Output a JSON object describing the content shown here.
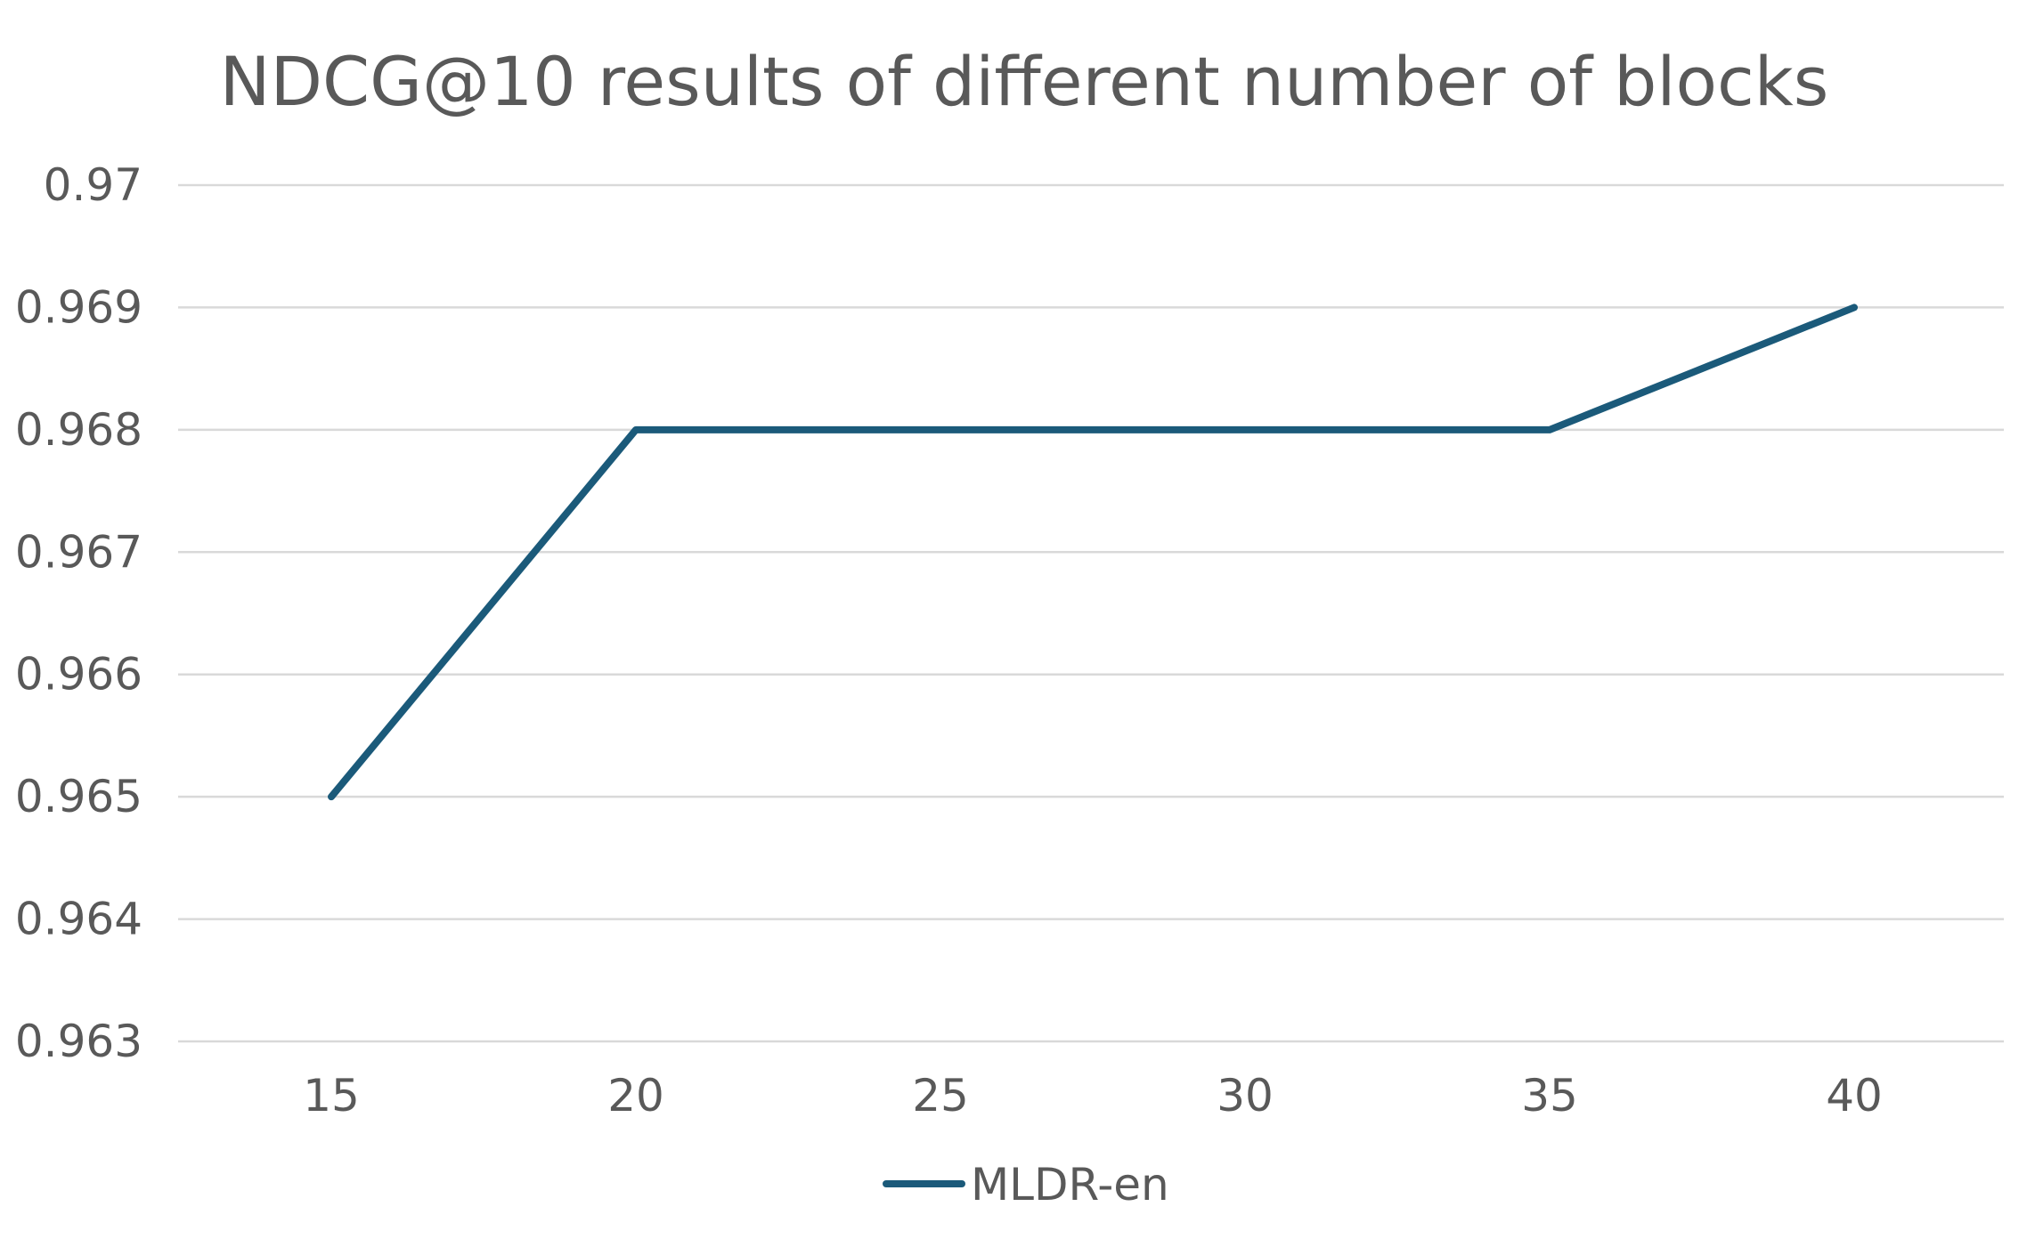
{
  "chart_data": {
    "type": "line",
    "title": "NDCG@10 results of different number of blocks",
    "xlabel": "",
    "ylabel": "",
    "categories": [
      "15",
      "20",
      "25",
      "30",
      "35",
      "40"
    ],
    "x": [
      15,
      20,
      25,
      30,
      35,
      40
    ],
    "yticks": [
      "0.963",
      "0.964",
      "0.965",
      "0.966",
      "0.967",
      "0.968",
      "0.969",
      "0.97"
    ],
    "ylim": [
      0.963,
      0.97
    ],
    "grid": true,
    "legend_position": "bottom",
    "series": [
      {
        "name": "MLDR-en",
        "color": "#1b5a7a",
        "points": [
          {
            "x": 15,
            "y": 0.965
          },
          {
            "x": 20,
            "y": 0.968
          },
          {
            "x": 35,
            "y": 0.968
          },
          {
            "x": 40,
            "y": 0.969
          }
        ]
      }
    ]
  }
}
